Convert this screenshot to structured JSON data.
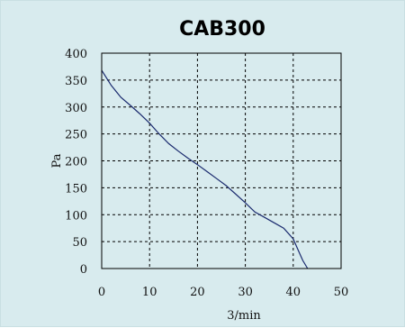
{
  "chart_data": {
    "type": "line",
    "title": "CAB300",
    "xlabel": "3/min",
    "ylabel": "Pa",
    "xlim": [
      0,
      50
    ],
    "ylim": [
      0,
      400
    ],
    "x_ticks": [
      "0",
      "10",
      "20",
      "30",
      "40",
      "50"
    ],
    "y_ticks": [
      "0",
      "50",
      "100",
      "150",
      "200",
      "250",
      "300",
      "350",
      "400"
    ],
    "grid": true,
    "grid_style": "dashed",
    "series": [
      {
        "x": [
          0,
          2,
          4,
          6,
          8,
          10,
          12,
          14,
          16,
          18,
          20,
          22,
          24,
          26,
          28,
          30,
          32,
          34,
          36,
          38,
          40,
          41,
          42,
          43
        ],
        "y": [
          368,
          340,
          318,
          303,
          287,
          270,
          250,
          232,
          218,
          205,
          193,
          180,
          167,
          154,
          138,
          122,
          105,
          95,
          85,
          75,
          55,
          35,
          15,
          0
        ]
      }
    ]
  },
  "colors": {
    "background": "#d8ebee",
    "plot_area": "#d8ebee",
    "line": "#1a2a6e",
    "grid": "#000000",
    "axis": "#000000"
  }
}
